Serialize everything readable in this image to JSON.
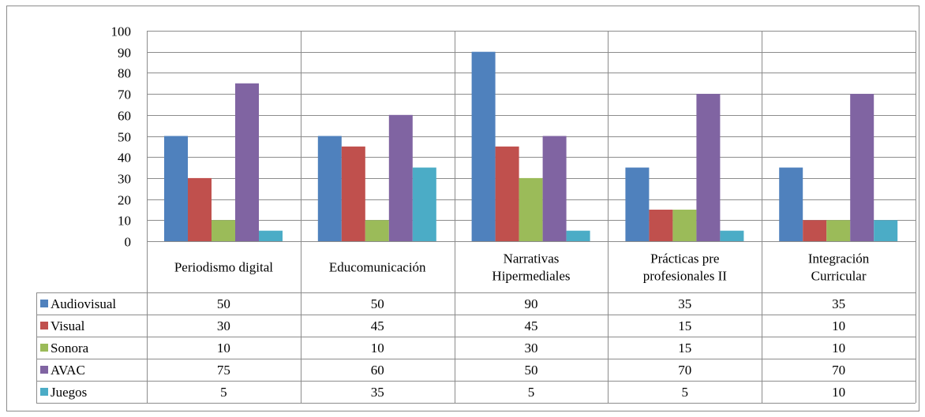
{
  "chart_data": {
    "type": "bar",
    "categories": [
      [
        "Periodismo digital"
      ],
      [
        "Educomunicación"
      ],
      [
        "Narrativas",
        "Hipermediales"
      ],
      [
        "Prácticas pre",
        "profesionales II"
      ],
      [
        "Integración",
        "Curricular"
      ]
    ],
    "series": [
      {
        "name": "Audiovisual",
        "color": "#4f81bd",
        "values": [
          50,
          50,
          90,
          35,
          35
        ]
      },
      {
        "name": "Visual",
        "color": "#c0504d",
        "values": [
          30,
          45,
          45,
          15,
          10
        ]
      },
      {
        "name": "Sonora",
        "color": "#9bbb59",
        "values": [
          10,
          10,
          30,
          15,
          10
        ]
      },
      {
        "name": "AVAC",
        "color": "#8064a2",
        "values": [
          75,
          60,
          50,
          70,
          70
        ]
      },
      {
        "name": "Juegos",
        "color": "#4bacc6",
        "values": [
          5,
          35,
          5,
          5,
          10
        ]
      }
    ],
    "ylim": [
      0,
      100
    ],
    "yticks": [
      0,
      10,
      20,
      30,
      40,
      50,
      60,
      70,
      80,
      90,
      100
    ],
    "grid": true,
    "legend": "data-table-left"
  }
}
